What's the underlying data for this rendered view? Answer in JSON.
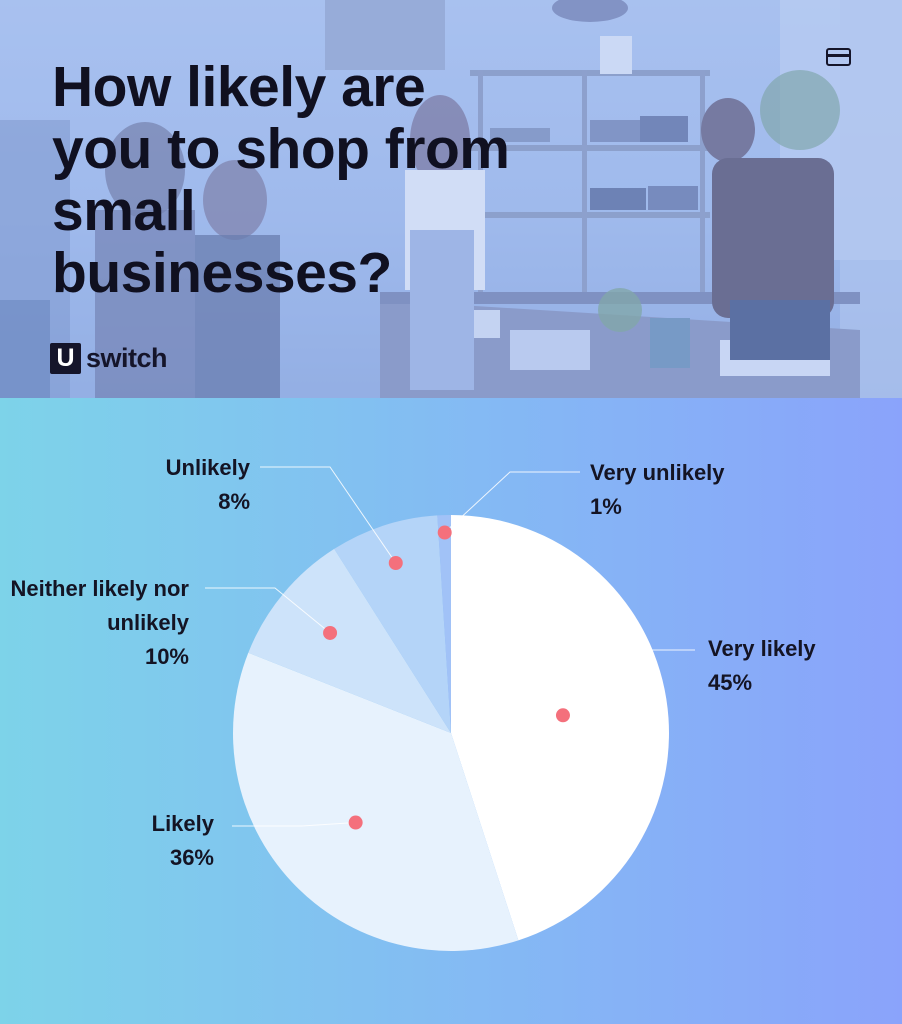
{
  "title": "How likely are you to shop from small businesses?",
  "brand": {
    "box_letter": "U",
    "name": "switch"
  },
  "icons": [
    "card-icon"
  ],
  "colors": {
    "label_text": "#141424",
    "marker": "#f4707c",
    "leader_line": "#ffffff"
  },
  "chart_data": {
    "type": "pie",
    "title": "How likely are you to shop from small businesses?",
    "unit": "%",
    "slices": [
      {
        "label": "Very likely",
        "value": 45,
        "value_label": "45%",
        "color": "#ffffff"
      },
      {
        "label": "Likely",
        "value": 36,
        "value_label": "36%",
        "color": "#e7f2fd"
      },
      {
        "label": "Neither likely nor unlikely",
        "value": 10,
        "value_label": "10%",
        "color": "#cde3fa"
      },
      {
        "label": "Unlikely",
        "value": 8,
        "value_label": "8%",
        "color": "#b4d4f8"
      },
      {
        "label": "Very unlikely",
        "value": 1,
        "value_label": "1%",
        "color": "#a1c2f7"
      }
    ]
  }
}
